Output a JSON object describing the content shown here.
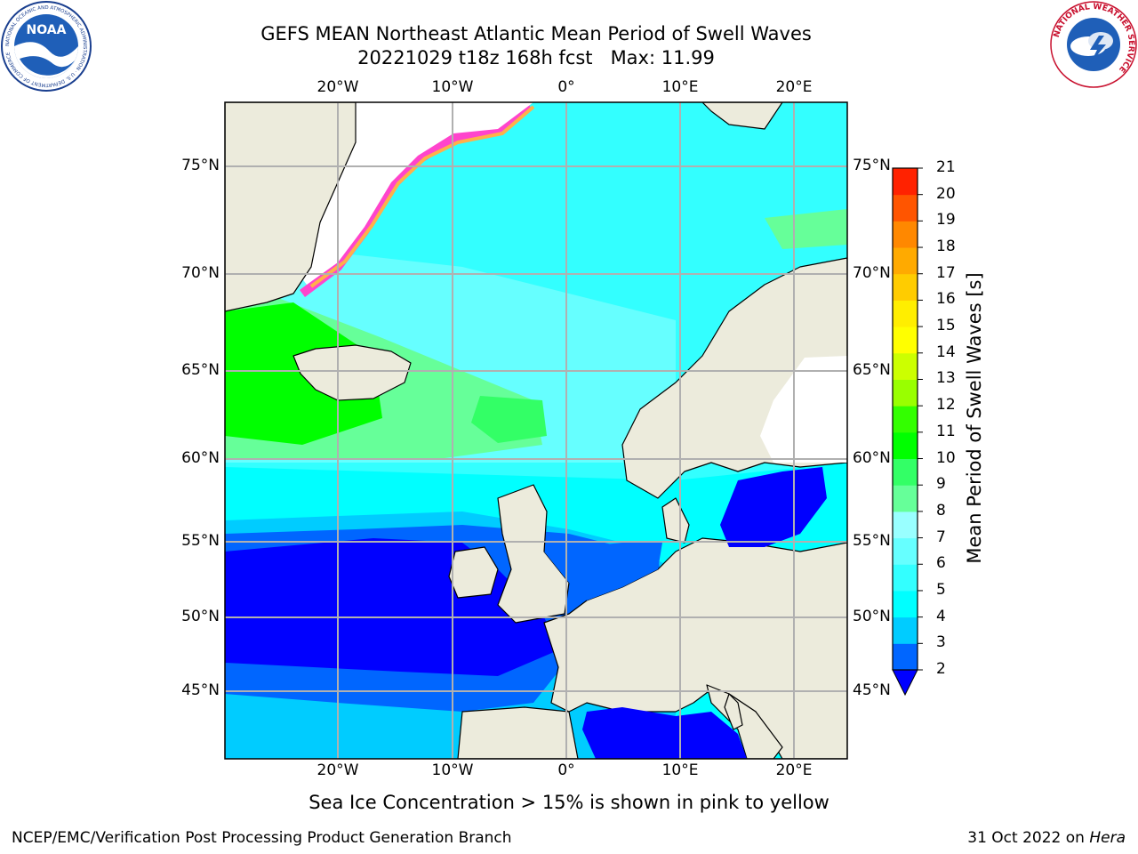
{
  "header": {
    "title_line1": "GEFS MEAN Northeast Atlantic Mean Period of Swell Waves",
    "title_line2": "20221029 t18z 168h fcst   Max: 11.99"
  },
  "logos": {
    "noaa_text": "NOAA",
    "noaa_ring": "NATIONAL OCEANIC AND ATMOSPHERIC ADMINISTRATION · U.S. DEPARTMENT OF COMMERCE",
    "nws_ring": "NATIONAL WEATHER SERVICE"
  },
  "map": {
    "lon_ticks": [
      "20°W",
      "10°W",
      "0°",
      "10°E",
      "20°E"
    ],
    "lat_ticks": [
      "75°N",
      "70°N",
      "65°N",
      "60°N",
      "55°N",
      "50°N",
      "45°N"
    ],
    "colors": {
      "land": "#ecebdc",
      "grid": "#b0b0b0",
      "coast": "#000000"
    }
  },
  "colorbar": {
    "label": "Mean Period of Swell Waves [s]",
    "ticks": [
      "21",
      "20",
      "19",
      "18",
      "17",
      "16",
      "15",
      "14",
      "13",
      "12",
      "11",
      "10",
      "9",
      "8",
      "7",
      "6",
      "5",
      "4",
      "3",
      "2"
    ],
    "colors_bottom_to_top": [
      "#0000ff",
      "#0066ff",
      "#00ccff",
      "#00ffff",
      "#33ffff",
      "#66ffff",
      "#99ffff",
      "#66ff99",
      "#33ff66",
      "#00ff00",
      "#33ff00",
      "#99ff00",
      "#ccff00",
      "#ffff00",
      "#ffee00",
      "#ffcc00",
      "#ffaa00",
      "#ff8800",
      "#ff5500",
      "#ff2200"
    ]
  },
  "annotation": "Sea Ice Concentration > 15% is shown in pink to yellow",
  "footer": {
    "left": "NCEP/EMC/Verification Post Processing Product Generation Branch",
    "date": "31 Oct 2022 on",
    "host": "Hera"
  }
}
